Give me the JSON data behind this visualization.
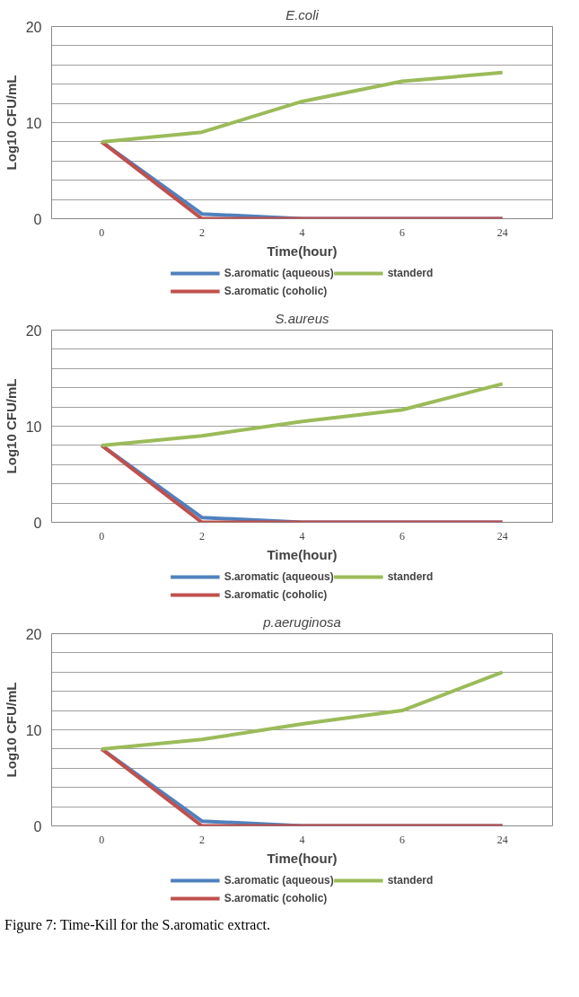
{
  "chart_data": [
    {
      "type": "line",
      "title": "E.coli",
      "xlabel": "Time(hour)",
      "ylabel": "Log10 CFU/mL",
      "categories": [
        "0",
        "2",
        "4",
        "6",
        "24"
      ],
      "ylim": [
        0,
        20
      ],
      "yticks": [
        0,
        {
          "value": 2,
          "label": null
        },
        {
          "value": 4,
          "label": null
        },
        {
          "value": 6,
          "label": null
        },
        {
          "value": 8,
          "label": null
        },
        10,
        {
          "value": 12,
          "label": null
        },
        {
          "value": 14,
          "label": null
        },
        {
          "value": 16,
          "label": null
        },
        {
          "value": 18,
          "label": null
        },
        20
      ],
      "grid": "y",
      "legend": "bottom",
      "marker": "none",
      "line_style": "solid",
      "series": [
        {
          "name": "S.aromatic (aqueous)",
          "color": "#4f81bd",
          "values": [
            8,
            0.5,
            0,
            0,
            0
          ]
        },
        {
          "name": "S.aromatic (coholic)",
          "color": "#c0504d",
          "values": [
            8,
            0,
            0,
            0,
            0
          ]
        },
        {
          "name": "standerd",
          "color": "#9bbb59",
          "values": [
            8,
            9,
            12.2,
            14.3,
            15.2
          ]
        }
      ]
    },
    {
      "type": "line",
      "title": "S.aureus",
      "xlabel": "Time(hour)",
      "ylabel": "Log10 CFU/mL",
      "categories": [
        "0",
        "2",
        "4",
        "6",
        "24"
      ],
      "ylim": [
        0,
        20
      ],
      "yticks": [
        0,
        {
          "value": 2,
          "label": null
        },
        {
          "value": 4,
          "label": null
        },
        {
          "value": 6,
          "label": null
        },
        {
          "value": 8,
          "label": null
        },
        10,
        {
          "value": 12,
          "label": null
        },
        {
          "value": 14,
          "label": null
        },
        {
          "value": 16,
          "label": null
        },
        {
          "value": 18,
          "label": null
        },
        20
      ],
      "grid": "y",
      "legend": "bottom",
      "marker": "none",
      "line_style": "solid",
      "series": [
        {
          "name": "S.aromatic (aqueous)",
          "color": "#4f81bd",
          "values": [
            8,
            0.5,
            0,
            0,
            0
          ]
        },
        {
          "name": "S.aromatic (coholic)",
          "color": "#c0504d",
          "values": [
            8,
            0,
            0,
            0,
            0
          ]
        },
        {
          "name": "standerd",
          "color": "#9bbb59",
          "values": [
            8,
            9,
            10.5,
            11.7,
            14.4
          ]
        }
      ]
    },
    {
      "type": "line",
      "title": "p.aeruginosa",
      "xlabel": "Time(hour)",
      "ylabel": "Log10 CFU/mL",
      "categories": [
        "0",
        "2",
        "4",
        "6",
        "24"
      ],
      "ylim": [
        0,
        20
      ],
      "yticks": [
        0,
        {
          "value": 2,
          "label": null
        },
        {
          "value": 4,
          "label": null
        },
        {
          "value": 6,
          "label": null
        },
        {
          "value": 8,
          "label": null
        },
        10,
        {
          "value": 12,
          "label": null
        },
        {
          "value": 14,
          "label": null
        },
        {
          "value": 16,
          "label": null
        },
        {
          "value": 18,
          "label": null
        },
        20
      ],
      "grid": "y",
      "legend": "bottom",
      "marker": "none",
      "line_style": "solid",
      "annotations": [
        "Figure 7: Time-Kill for the S.aromatic extract."
      ],
      "series": [
        {
          "name": "S.aromatic (aqueous)",
          "color": "#4f81bd",
          "values": [
            8,
            0.5,
            0,
            0,
            0
          ]
        },
        {
          "name": "S.aromatic (coholic)",
          "color": "#c0504d",
          "values": [
            8,
            0,
            0,
            0,
            0
          ]
        },
        {
          "name": "standerd",
          "color": "#9bbb59",
          "values": [
            8,
            9,
            10.6,
            12,
            16
          ]
        }
      ]
    }
  ]
}
